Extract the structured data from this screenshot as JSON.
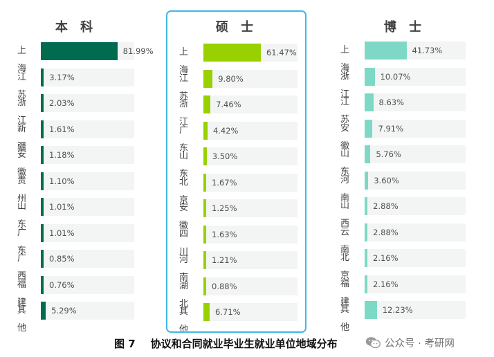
{
  "chart_data": [
    {
      "type": "bar",
      "title": "本 科",
      "categories": [
        "上海",
        "江苏",
        "浙江",
        "新疆",
        "安徽",
        "贵州",
        "山东",
        "广东",
        "广西",
        "福建",
        "其他"
      ],
      "values": [
        81.99,
        3.17,
        2.03,
        1.61,
        1.18,
        1.1,
        1.01,
        1.01,
        0.85,
        0.76,
        5.29
      ],
      "labels": [
        "81.99%",
        "3.17%",
        "2.03%",
        "1.61%",
        "1.18%",
        "1.10%",
        "1.01%",
        "1.01%",
        "0.85%",
        "0.76%",
        "5.29%"
      ],
      "unit": "%",
      "color": "#006b4f"
    },
    {
      "type": "bar",
      "title": "硕 士",
      "categories": [
        "上海",
        "江苏",
        "浙江",
        "广东",
        "山东",
        "北京",
        "安徽",
        "四川",
        "河南",
        "湖北",
        "其他"
      ],
      "values": [
        61.47,
        9.8,
        7.46,
        4.42,
        3.5,
        1.67,
        1.25,
        1.63,
        1.21,
        0.88,
        6.71
      ],
      "labels": [
        "61.47%",
        "9.80%",
        "7.46%",
        "4.42%",
        "3.50%",
        "1.67%",
        "1.25%",
        "1.63%",
        "1.21%",
        "0.88%",
        "6.71%"
      ],
      "unit": "%",
      "color": "#99d000"
    },
    {
      "type": "bar",
      "title": "博 士",
      "categories": [
        "上海",
        "浙江",
        "江苏",
        "安徽",
        "山东",
        "河南",
        "山西",
        "云南",
        "北京",
        "福建",
        "其他"
      ],
      "values": [
        41.73,
        10.07,
        8.63,
        7.91,
        5.76,
        3.6,
        2.88,
        2.88,
        2.16,
        2.16,
        12.23
      ],
      "labels": [
        "41.73%",
        "10.07%",
        "8.63%",
        "7.91%",
        "5.76%",
        "3.60%",
        "2.88%",
        "2.88%",
        "2.16%",
        "2.16%",
        "12.23%"
      ],
      "unit": "%",
      "color": "#7dd9c6"
    }
  ],
  "caption": {
    "figure_number": "图 7",
    "text": "协议和合同就业毕业生就业单位地域分布"
  },
  "watermark": {
    "text": "公众号 · 考研网",
    "icon": "wechat-icon"
  }
}
